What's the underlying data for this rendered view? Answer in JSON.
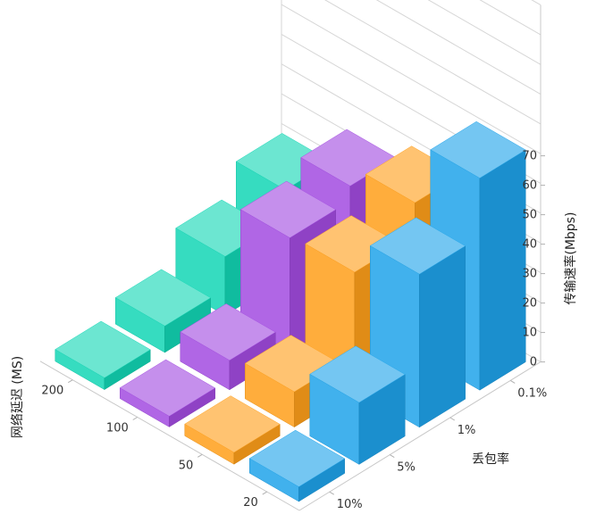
{
  "chart_data": {
    "type": "bar3d",
    "x_axis": {
      "title": "网络延迟 (MS)",
      "categories": [
        "20",
        "50",
        "100",
        "200"
      ]
    },
    "y_axis": {
      "title": "丢包率",
      "categories": [
        "0.1%",
        "1%",
        "5%",
        "10%"
      ]
    },
    "z_axis": {
      "title": "传输速率(Mbps)",
      "ticks": [
        "0",
        "10",
        "20",
        "30",
        "40",
        "50",
        "60",
        "70"
      ],
      "range": [
        0,
        70
      ]
    },
    "values": [
      [
        72,
        52,
        21,
        5
      ],
      [
        51,
        40,
        12,
        4
      ],
      [
        44,
        39,
        10,
        3
      ],
      [
        30,
        20,
        9,
        4
      ]
    ],
    "series_colors": [
      "#1FA3EA",
      "#FF9F1A",
      "#A24BE0",
      "#12D6B5"
    ],
    "grid": true
  }
}
